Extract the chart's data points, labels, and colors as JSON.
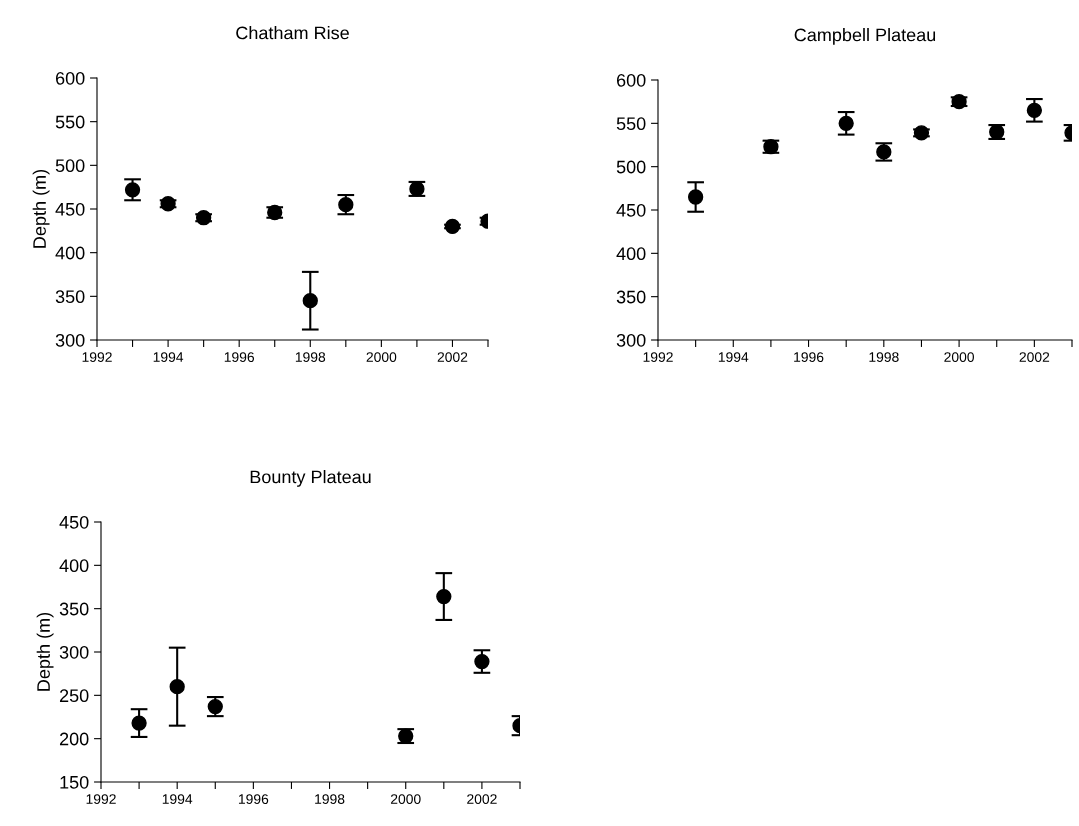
{
  "chart_data": [
    {
      "type": "scatter",
      "title": "Chatham Rise",
      "ylabel": "Depth (m)",
      "marker": "circle",
      "grid": false,
      "legend": false,
      "x": [
        1993,
        1994,
        1995,
        1997,
        1998,
        1999,
        2001,
        2002,
        2003
      ],
      "series": [
        {
          "color": "#000000",
          "values": [
            472,
            456,
            440,
            446,
            345,
            455,
            473,
            430,
            436
          ],
          "errors": [
            12,
            4,
            4,
            6,
            33,
            11,
            8,
            2,
            4
          ]
        }
      ],
      "xlim": [
        1992,
        2003
      ],
      "ylim": [
        300,
        600
      ],
      "xticks": [
        1992,
        {
          "value": 1993,
          "label": null
        },
        1994,
        {
          "value": 1995,
          "label": null
        },
        1996,
        {
          "value": 1997,
          "label": null
        },
        1998,
        {
          "value": 1999,
          "label": null
        },
        2000,
        {
          "value": 2001,
          "label": null
        },
        2002,
        {
          "value": 2003,
          "label": null
        }
      ],
      "yticks": [
        300,
        350,
        400,
        450,
        500,
        550,
        600
      ]
    },
    {
      "type": "scatter",
      "title": "Campbell Plateau",
      "marker": "circle",
      "grid": false,
      "legend": false,
      "x": [
        1993,
        1995,
        1997,
        1998,
        1999,
        2000,
        2001,
        2002,
        2003
      ],
      "series": [
        {
          "color": "#000000",
          "values": [
            465,
            523,
            550,
            517,
            539,
            575,
            540,
            565,
            539
          ],
          "errors": [
            17,
            7,
            13,
            10,
            4,
            5,
            8,
            13,
            9
          ]
        }
      ],
      "xlim": [
        1992,
        2003
      ],
      "ylim": [
        300,
        600
      ],
      "xticks": [
        1992,
        {
          "value": 1993,
          "label": null
        },
        1994,
        {
          "value": 1995,
          "label": null
        },
        1996,
        {
          "value": 1997,
          "label": null
        },
        1998,
        {
          "value": 1999,
          "label": null
        },
        2000,
        {
          "value": 2001,
          "label": null
        },
        2002,
        {
          "value": 2003,
          "label": null
        }
      ],
      "yticks": [
        300,
        350,
        400,
        450,
        500,
        550,
        600
      ]
    },
    {
      "type": "scatter",
      "title": "Bounty Plateau",
      "ylabel": "Depth (m)",
      "marker": "circle",
      "grid": false,
      "legend": false,
      "x": [
        1993,
        1994,
        1995,
        2000,
        2001,
        2002,
        2003
      ],
      "series": [
        {
          "color": "#000000",
          "values": [
            218,
            260,
            237,
            203,
            364,
            289,
            215
          ],
          "errors": [
            16,
            45,
            11,
            8,
            27,
            13,
            11
          ]
        }
      ],
      "xlim": [
        1992,
        2003
      ],
      "ylim": [
        150,
        450
      ],
      "xticks": [
        1992,
        {
          "value": 1993,
          "label": null
        },
        1994,
        {
          "value": 1995,
          "label": null
        },
        1996,
        {
          "value": 1997,
          "label": null
        },
        1998,
        {
          "value": 1999,
          "label": null
        },
        2000,
        {
          "value": 2001,
          "label": null
        },
        2002,
        {
          "value": 2003,
          "label": null
        }
      ],
      "yticks": [
        150,
        200,
        250,
        300,
        350,
        400,
        450
      ]
    }
  ]
}
